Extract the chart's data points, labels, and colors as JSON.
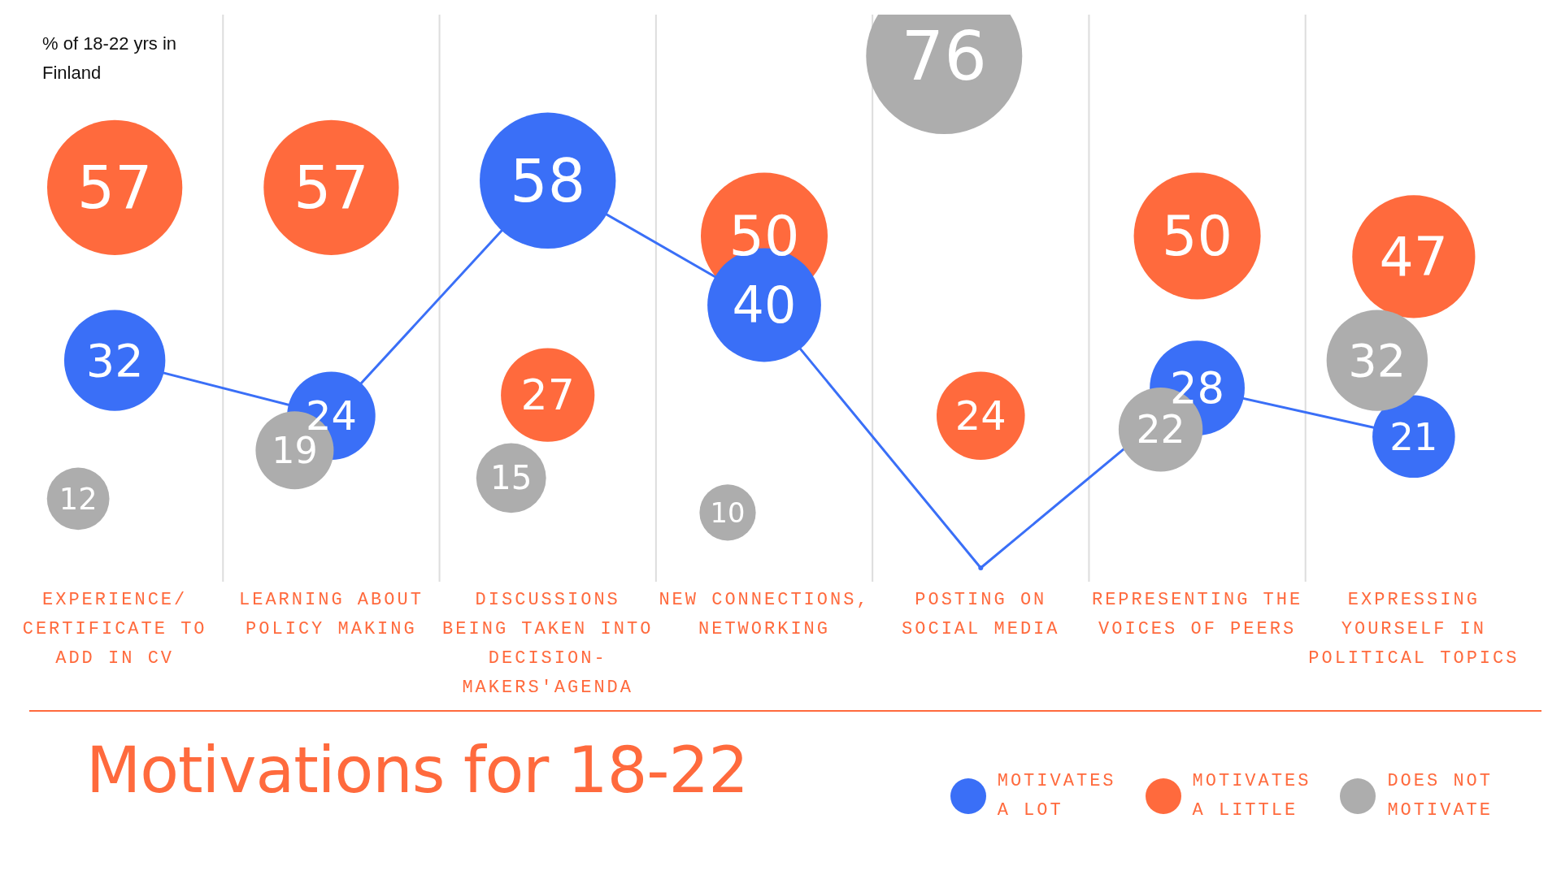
{
  "chart_data": {
    "type": "bubble",
    "title": "Motivations for 18-22",
    "annotations": [
      "% of 18-22 yrs in Finland"
    ],
    "categories": [
      "EXPERIENCE/ CERTIFICATE TO ADD IN CV",
      "LEARNING ABOUT POLICY MAKING",
      "DISCUSSIONS BEING TAKEN INTO DECISION-MAKERS'AGENDA",
      "NEW CONNECTIONS, NETWORKING",
      "POSTING ON SOCIAL MEDIA",
      "REPRESENTING THE VOICES OF PEERS",
      "EXPRESSING YOURSELF IN POLITICAL TOPICS"
    ],
    "series": [
      {
        "name": "MOTIVATES A LOT",
        "color": "#3a6ff7",
        "line_style": "solid",
        "values": [
          32,
          24,
          58,
          40,
          2,
          28,
          21
        ],
        "sizes": [
          0.42,
          0.32,
          0.76,
          0.53,
          null,
          0.37,
          0.28
        ],
        "value_labels": [
          "32",
          "24",
          "58",
          "40",
          null,
          "28",
          "21"
        ]
      },
      {
        "name": "MOTIVATES A LITTLE",
        "color": "#ff6a3d",
        "values": [
          57,
          57,
          27,
          50,
          24,
          50,
          47
        ],
        "sizes": [
          0.75,
          0.75,
          0.36,
          0.66,
          0.32,
          0.66,
          0.62
        ],
        "value_labels": [
          "57",
          "57",
          "27",
          "50",
          "24",
          "50",
          "47"
        ]
      },
      {
        "name": "DOES NOT MOTIVATE",
        "color": "#adadad",
        "values": [
          12,
          19,
          15,
          10,
          76,
          22,
          32
        ],
        "sizes": [
          0.16,
          0.25,
          0.2,
          0.13,
          1,
          0.29,
          0.42
        ],
        "value_labels": [
          "12",
          "19",
          "15",
          "10",
          "76",
          "22",
          "32"
        ]
      }
    ],
    "ylim": [
      0,
      82
    ],
    "tick_labels": "x",
    "grid": "x",
    "legend": "bottom"
  }
}
